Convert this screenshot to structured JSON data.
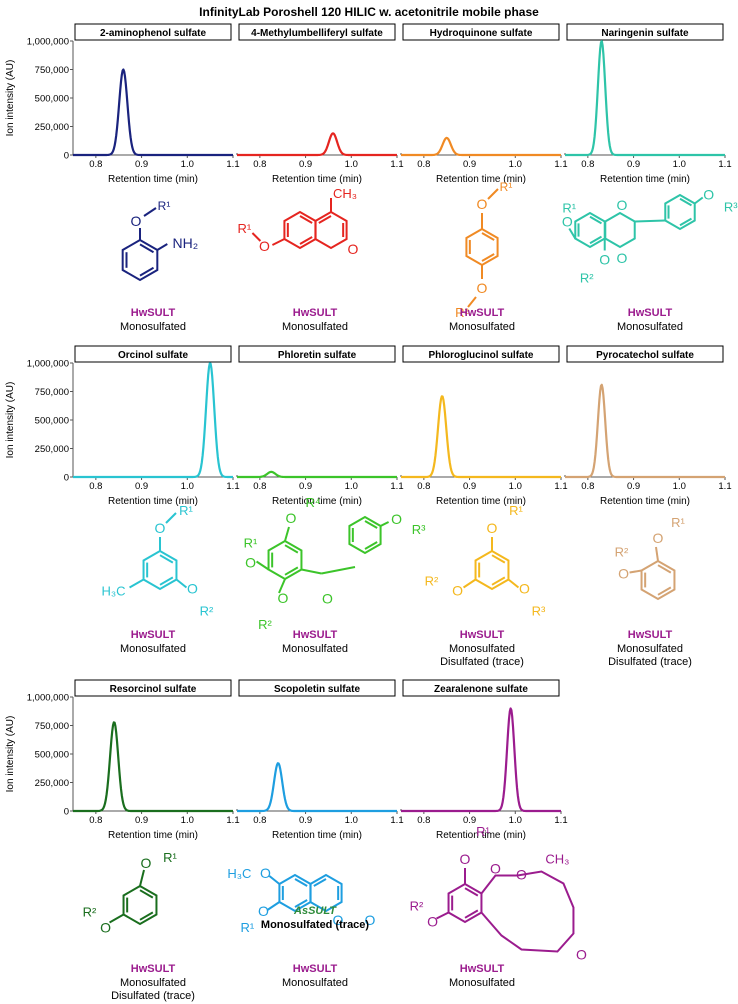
{
  "title": "InfinityLab Poroshell 120 HILIC w. acetonitrile mobile phase",
  "colors": {
    "navy": "#1a237e",
    "red": "#e52520",
    "orange": "#f08a24",
    "teal": "#2ec4a8",
    "cyan": "#29c4d1",
    "green": "#3cc42a",
    "gold": "#f4b81e",
    "tan": "#d4a373",
    "darkgreen": "#1a6e1e",
    "blue": "#1e9ee0",
    "purple": "#9b1c8e",
    "enzyme_purple": "#9b1c8e",
    "enzyme_green": "#2e8b3a"
  },
  "axes": {
    "ylabel": "Ion intensity (AU)",
    "xlabel": "Retention time (min)",
    "yticks": [
      "0",
      "250,000",
      "500,000",
      "750,000",
      "1,000,000"
    ],
    "xticks": [
      "0.8",
      "0.9",
      "1.0",
      "1.1"
    ]
  },
  "chart_data": [
    {
      "type": "line",
      "title": "2-aminophenol sulfate",
      "color": "#1a237e",
      "x_range": [
        0.75,
        1.1
      ],
      "ylim": [
        0,
        1000000
      ],
      "peak_rt": 0.86,
      "peak_intensity": 750000,
      "sigma": 0.009
    },
    {
      "type": "line",
      "title": "4-Methylumbelliferyl sulfate",
      "color": "#e52520",
      "x_range": [
        0.75,
        1.1
      ],
      "ylim": [
        0,
        1000000
      ],
      "peak_rt": 0.96,
      "peak_intensity": 190000,
      "sigma": 0.009
    },
    {
      "type": "line",
      "title": "Hydroquinone sulfate",
      "color": "#f08a24",
      "x_range": [
        0.75,
        1.1
      ],
      "ylim": [
        0,
        1000000
      ],
      "peak_rt": 0.85,
      "peak_intensity": 150000,
      "sigma": 0.009
    },
    {
      "type": "line",
      "title": "Naringenin sulfate",
      "color": "#2ec4a8",
      "x_range": [
        0.75,
        1.1
      ],
      "ylim": [
        0,
        1000000
      ],
      "peak_rt": 0.83,
      "peak_intensity": 1000000,
      "sigma": 0.008
    },
    {
      "type": "line",
      "title": "Orcinol sulfate",
      "color": "#29c4d1",
      "x_range": [
        0.75,
        1.1
      ],
      "ylim": [
        0,
        1000000
      ],
      "peak_rt": 1.05,
      "peak_intensity": 1000000,
      "sigma": 0.009
    },
    {
      "type": "line",
      "title": "Phloretin sulfate",
      "color": "#3cc42a",
      "x_range": [
        0.75,
        1.1
      ],
      "ylim": [
        0,
        1000000
      ],
      "peak_rt": 0.825,
      "peak_intensity": 45000,
      "sigma": 0.009
    },
    {
      "type": "line",
      "title": "Phloroglucinol sulfate",
      "color": "#f4b81e",
      "x_range": [
        0.75,
        1.1
      ],
      "ylim": [
        0,
        1000000
      ],
      "peak_rt": 0.84,
      "peak_intensity": 710000,
      "sigma": 0.009
    },
    {
      "type": "line",
      "title": "Pyrocatechol sulfate",
      "color": "#d4a373",
      "x_range": [
        0.75,
        1.1
      ],
      "ylim": [
        0,
        1000000
      ],
      "peak_rt": 0.83,
      "peak_intensity": 810000,
      "sigma": 0.008
    },
    {
      "type": "line",
      "title": "Resorcinol sulfate",
      "color": "#1a6e1e",
      "x_range": [
        0.75,
        1.1
      ],
      "ylim": [
        0,
        1000000
      ],
      "peak_rt": 0.84,
      "peak_intensity": 780000,
      "sigma": 0.009
    },
    {
      "type": "line",
      "title": "Scopoletin sulfate",
      "color": "#1e9ee0",
      "x_range": [
        0.75,
        1.1
      ],
      "ylim": [
        0,
        1000000
      ],
      "peak_rt": 0.84,
      "peak_intensity": 420000,
      "sigma": 0.009
    },
    {
      "type": "line",
      "title": "Zearalenone sulfate",
      "color": "#9b1c8e",
      "x_range": [
        0.75,
        1.1
      ],
      "ylim": [
        0,
        1000000
      ],
      "peak_rt": 0.99,
      "peak_intensity": 900000,
      "sigma": 0.008
    }
  ],
  "captions": [
    {
      "enzyme": "HwSULT",
      "lines": [
        "Monosulfated"
      ]
    },
    {
      "enzyme": "HwSULT",
      "lines": [
        "Monosulfated"
      ]
    },
    {
      "enzyme": "HwSULT",
      "lines": [
        "Monosulfated"
      ]
    },
    {
      "enzyme": "HwSULT",
      "lines": [
        "Monosulfated"
      ]
    },
    {
      "enzyme": "HwSULT",
      "lines": [
        "Monosulfated"
      ]
    },
    {
      "enzyme": "HwSULT",
      "lines": [
        "Monosulfated"
      ]
    },
    {
      "enzyme": "HwSULT",
      "lines": [
        "Monosulfated",
        "Disulfated (trace)"
      ]
    },
    {
      "enzyme": "HwSULT",
      "lines": [
        "Monosulfated",
        "Disulfated (trace)"
      ]
    },
    {
      "enzyme": "HwSULT",
      "lines": [
        "Monosulfated",
        "Disulfated (trace)"
      ]
    },
    {
      "enzyme": "HwSULT",
      "lines": [
        "Monosulfated"
      ],
      "extra_enzyme": "AsSULT",
      "extra_line": "Monosulfated (trace)"
    },
    {
      "enzyme": "HwSULT",
      "lines": [
        "Monosulfated"
      ]
    }
  ],
  "structure_labels": {
    "r1": "R¹",
    "r2": "R²",
    "r3": "R³",
    "r4": "R⁴",
    "o": "O",
    "nh2": "NH₂",
    "ch3": "CH₃",
    "h3c": "H₃C"
  }
}
